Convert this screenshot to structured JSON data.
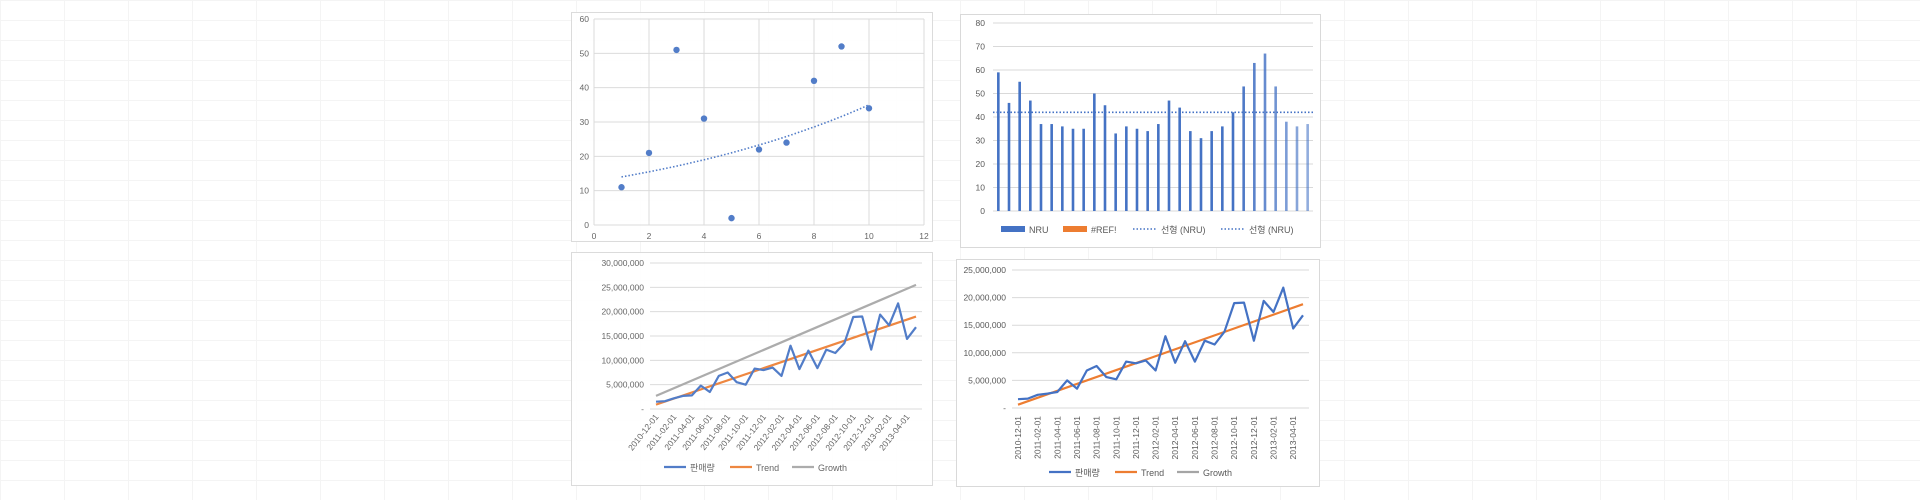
{
  "chart_data": [
    {
      "type": "scatter",
      "title": "",
      "xlabel": "",
      "ylabel": "",
      "xlim": [
        0,
        12
      ],
      "ylim": [
        0,
        60
      ],
      "x_ticks": [
        "0",
        "2",
        "4",
        "6",
        "8",
        "10",
        "12"
      ],
      "y_ticks": [
        "0",
        "10",
        "20",
        "30",
        "40",
        "50",
        "60"
      ],
      "grid": true,
      "points": [
        {
          "x": 1,
          "y": 11
        },
        {
          "x": 2,
          "y": 21
        },
        {
          "x": 3,
          "y": 51
        },
        {
          "x": 4,
          "y": 31
        },
        {
          "x": 5,
          "y": 2
        },
        {
          "x": 6,
          "y": 22
        },
        {
          "x": 7,
          "y": 24
        },
        {
          "x": 8,
          "y": 42
        },
        {
          "x": 9,
          "y": 52
        },
        {
          "x": 10,
          "y": 34
        }
      ],
      "trendline": {
        "type": "exponential",
        "from": {
          "x": 1,
          "y": 14
        },
        "to": {
          "x": 10,
          "y": 35
        }
      },
      "colors": {
        "point": "#4472c4",
        "trend": "#4472c4"
      }
    },
    {
      "type": "bar",
      "title": "",
      "ylim": [
        0,
        80
      ],
      "y_ticks": [
        "0",
        "10",
        "20",
        "30",
        "40",
        "50",
        "60",
        "70",
        "80"
      ],
      "grid": true,
      "values": [
        59,
        46,
        55,
        47,
        37,
        37,
        36,
        35,
        35,
        50,
        45,
        33,
        36,
        35,
        34,
        37,
        47,
        44,
        34,
        31,
        34,
        36,
        42,
        53,
        63,
        67,
        53,
        38,
        36,
        37
      ],
      "average_line": 42,
      "legend_position": "bottom",
      "legend": [
        "NRU",
        "#REF!",
        "선형 (NRU)",
        "선형 (NRU)"
      ],
      "colors": {
        "bar": "#4472c4",
        "ref": "#ed7d31",
        "trend": "#4472c4"
      }
    },
    {
      "type": "line",
      "title": "",
      "ylim": [
        0,
        30000000
      ],
      "y_ticks": [
        "-",
        "5,000,000",
        "10,000,000",
        "15,000,000",
        "20,000,000",
        "25,000,000",
        "30,000,000"
      ],
      "x_ticks": [
        "2010-12-01",
        "2011-02-01",
        "2011-04-01",
        "2011-06-01",
        "2011-08-01",
        "2011-10-01",
        "2011-12-01",
        "2012-02-01",
        "2012-04-01",
        "2012-06-01",
        "2012-08-01",
        "2012-10-01",
        "2012-12-01",
        "2013-02-01",
        "2013-04-01"
      ],
      "series": [
        {
          "name": "판매량",
          "color": "#4472c4",
          "values": [
            1500000,
            1600000,
            2200000,
            2700000,
            2800000,
            4800000,
            3500000,
            6800000,
            7500000,
            5500000,
            5000000,
            8300000,
            8000000,
            8500000,
            6800000,
            13000000,
            8200000,
            12000000,
            8400000,
            12200000,
            11500000,
            13500000,
            18900000,
            19000000,
            12200000,
            19400000,
            17200000,
            21700000,
            14400000,
            16800000
          ]
        },
        {
          "name": "Trend",
          "color": "#ed7d31",
          "values": [
            900000,
            19000000
          ]
        },
        {
          "name": "Growth",
          "color": "#a5a5a5",
          "values": [
            2700000,
            25500000
          ]
        }
      ],
      "legend_position": "bottom"
    },
    {
      "type": "line",
      "title": "",
      "ylim": [
        0,
        25000000
      ],
      "y_ticks": [
        "-",
        "5,000,000",
        "10,000,000",
        "15,000,000",
        "20,000,000",
        "25,000,000"
      ],
      "x_ticks": [
        "2010-12-01",
        "2011-02-01",
        "2011-04-01",
        "2011-06-01",
        "2011-08-01",
        "2011-10-01",
        "2011-12-01",
        "2012-02-01",
        "2012-04-01",
        "2012-06-01",
        "2012-08-01",
        "2012-10-01",
        "2012-12-01",
        "2013-02-01",
        "2013-04-01"
      ],
      "series": [
        {
          "name": "판매량",
          "color": "#4472c4",
          "values": [
            1600000,
            1700000,
            2400000,
            2600000,
            2900000,
            5000000,
            3500000,
            6800000,
            7600000,
            5600000,
            5200000,
            8400000,
            8100000,
            8600000,
            6800000,
            13000000,
            8200000,
            12100000,
            8400000,
            12200000,
            11500000,
            13800000,
            19000000,
            19100000,
            12200000,
            19400000,
            17400000,
            21800000,
            14400000,
            16800000
          ]
        },
        {
          "name": "Trend",
          "color": "#ed7d31",
          "values": [
            600000,
            18800000
          ]
        },
        {
          "name": "Growth",
          "color": "#a5a5a5",
          "values": []
        }
      ],
      "legend_position": "bottom"
    }
  ]
}
